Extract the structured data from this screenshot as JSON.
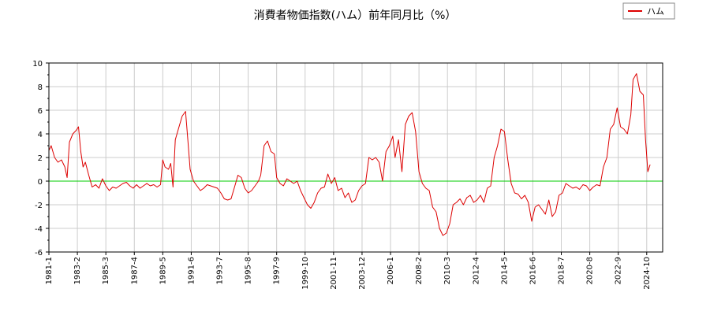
{
  "chart_data": {
    "type": "line",
    "title": "消費者物価指数(ハム）前年同月比（%）",
    "xlabel": "",
    "ylabel": "",
    "ylim": [
      -6,
      10
    ],
    "yticks": [
      -6,
      -4,
      -2,
      0,
      2,
      4,
      6,
      8,
      10
    ],
    "xlim": [
      "1981-01",
      "2025-12"
    ],
    "xticks": [
      "1981-1",
      "1983-2",
      "1985-3",
      "1987-4",
      "1989-5",
      "1991-6",
      "1993-7",
      "1995-8",
      "1997-9",
      "1999-10",
      "2001-11",
      "2003-12",
      "2006-1",
      "2008-2",
      "2010-3",
      "2012-4",
      "2014-5",
      "2016-6",
      "2018-7",
      "2020-8",
      "2022-9",
      "2024-10"
    ],
    "grid": true,
    "legend": {
      "position": "top-right"
    },
    "reference_line": {
      "y": 0,
      "color": "#00cc00"
    },
    "series": [
      {
        "name": "ハム",
        "color": "#dd0000",
        "points": [
          [
            "1981-01",
            2.6
          ],
          [
            "1981-03",
            3.0
          ],
          [
            "1981-06",
            2.0
          ],
          [
            "1981-09",
            1.6
          ],
          [
            "1981-12",
            1.8
          ],
          [
            "1982-03",
            1.2
          ],
          [
            "1982-05",
            0.3
          ],
          [
            "1982-07",
            3.3
          ],
          [
            "1982-10",
            4.0
          ],
          [
            "1983-01",
            4.3
          ],
          [
            "1983-03",
            4.6
          ],
          [
            "1983-05",
            2.5
          ],
          [
            "1983-07",
            1.2
          ],
          [
            "1983-09",
            1.6
          ],
          [
            "1983-12",
            0.5
          ],
          [
            "1984-03",
            -0.5
          ],
          [
            "1984-06",
            -0.3
          ],
          [
            "1984-09",
            -0.6
          ],
          [
            "1984-12",
            0.2
          ],
          [
            "1985-03",
            -0.4
          ],
          [
            "1985-06",
            -0.8
          ],
          [
            "1985-09",
            -0.5
          ],
          [
            "1985-12",
            -0.6
          ],
          [
            "1986-03",
            -0.4
          ],
          [
            "1986-06",
            -0.2
          ],
          [
            "1986-09",
            -0.1
          ],
          [
            "1986-12",
            -0.4
          ],
          [
            "1987-03",
            -0.6
          ],
          [
            "1987-06",
            -0.3
          ],
          [
            "1987-09",
            -0.6
          ],
          [
            "1987-12",
            -0.4
          ],
          [
            "1988-03",
            -0.2
          ],
          [
            "1988-06",
            -0.4
          ],
          [
            "1988-09",
            -0.3
          ],
          [
            "1988-12",
            -0.5
          ],
          [
            "1989-03",
            -0.3
          ],
          [
            "1989-05",
            1.8
          ],
          [
            "1989-07",
            1.2
          ],
          [
            "1989-10",
            1.0
          ],
          [
            "1989-12",
            1.5
          ],
          [
            "1990-02",
            -0.5
          ],
          [
            "1990-04",
            3.5
          ],
          [
            "1990-07",
            4.5
          ],
          [
            "1990-10",
            5.5
          ],
          [
            "1991-01",
            5.9
          ],
          [
            "1991-03",
            3.5
          ],
          [
            "1991-05",
            1.0
          ],
          [
            "1991-08",
            0.0
          ],
          [
            "1991-11",
            -0.4
          ],
          [
            "1992-02",
            -0.8
          ],
          [
            "1992-05",
            -0.6
          ],
          [
            "1992-08",
            -0.3
          ],
          [
            "1992-11",
            -0.4
          ],
          [
            "1993-02",
            -0.5
          ],
          [
            "1993-05",
            -0.6
          ],
          [
            "1993-08",
            -1.0
          ],
          [
            "1993-11",
            -1.5
          ],
          [
            "1994-02",
            -1.6
          ],
          [
            "1994-05",
            -1.5
          ],
          [
            "1994-08",
            -0.5
          ],
          [
            "1994-11",
            0.5
          ],
          [
            "1995-02",
            0.3
          ],
          [
            "1995-05",
            -0.6
          ],
          [
            "1995-08",
            -1.0
          ],
          [
            "1995-11",
            -0.8
          ],
          [
            "1996-02",
            -0.4
          ],
          [
            "1996-05",
            0.0
          ],
          [
            "1996-07",
            0.5
          ],
          [
            "1996-10",
            3.0
          ],
          [
            "1997-01",
            3.4
          ],
          [
            "1997-04",
            2.5
          ],
          [
            "1997-07",
            2.3
          ],
          [
            "1997-09",
            0.3
          ],
          [
            "1997-12",
            -0.2
          ],
          [
            "1998-03",
            -0.4
          ],
          [
            "1998-06",
            0.2
          ],
          [
            "1998-09",
            0.0
          ],
          [
            "1998-12",
            -0.2
          ],
          [
            "1999-03",
            0.0
          ],
          [
            "1999-06",
            -0.8
          ],
          [
            "1999-09",
            -1.4
          ],
          [
            "1999-12",
            -2.0
          ],
          [
            "2000-03",
            -2.3
          ],
          [
            "2000-06",
            -1.8
          ],
          [
            "2000-09",
            -1.0
          ],
          [
            "2000-12",
            -0.6
          ],
          [
            "2001-03",
            -0.5
          ],
          [
            "2001-06",
            0.6
          ],
          [
            "2001-09",
            -0.2
          ],
          [
            "2001-12",
            0.3
          ],
          [
            "2002-03",
            -0.8
          ],
          [
            "2002-06",
            -0.6
          ],
          [
            "2002-09",
            -1.4
          ],
          [
            "2002-12",
            -1.0
          ],
          [
            "2003-03",
            -1.8
          ],
          [
            "2003-06",
            -1.6
          ],
          [
            "2003-09",
            -0.8
          ],
          [
            "2003-12",
            -0.4
          ],
          [
            "2004-03",
            -0.2
          ],
          [
            "2004-06",
            2.0
          ],
          [
            "2004-09",
            1.8
          ],
          [
            "2004-12",
            2.0
          ],
          [
            "2005-03",
            1.6
          ],
          [
            "2005-06",
            0.0
          ],
          [
            "2005-09",
            2.5
          ],
          [
            "2005-12",
            3.0
          ],
          [
            "2006-03",
            3.8
          ],
          [
            "2006-05",
            2.0
          ],
          [
            "2006-08",
            3.5
          ],
          [
            "2006-11",
            0.8
          ],
          [
            "2007-02",
            4.8
          ],
          [
            "2007-05",
            5.5
          ],
          [
            "2007-08",
            5.8
          ],
          [
            "2007-11",
            4.2
          ],
          [
            "2008-02",
            0.8
          ],
          [
            "2008-05",
            -0.2
          ],
          [
            "2008-08",
            -0.6
          ],
          [
            "2008-11",
            -0.8
          ],
          [
            "2009-02",
            -2.2
          ],
          [
            "2009-05",
            -2.6
          ],
          [
            "2009-08",
            -4.0
          ],
          [
            "2009-11",
            -4.6
          ],
          [
            "2010-02",
            -4.4
          ],
          [
            "2010-05",
            -3.6
          ],
          [
            "2010-08",
            -2.0
          ],
          [
            "2010-11",
            -1.8
          ],
          [
            "2011-02",
            -1.5
          ],
          [
            "2011-05",
            -2.0
          ],
          [
            "2011-08",
            -1.4
          ],
          [
            "2011-11",
            -1.2
          ],
          [
            "2012-02",
            -1.8
          ],
          [
            "2012-05",
            -1.6
          ],
          [
            "2012-08",
            -1.2
          ],
          [
            "2012-11",
            -1.8
          ],
          [
            "2013-02",
            -0.6
          ],
          [
            "2013-05",
            -0.4
          ],
          [
            "2013-08",
            2.0
          ],
          [
            "2013-11",
            3.0
          ],
          [
            "2014-02",
            4.4
          ],
          [
            "2014-05",
            4.2
          ],
          [
            "2014-08",
            1.8
          ],
          [
            "2014-11",
            -0.2
          ],
          [
            "2015-02",
            -1.0
          ],
          [
            "2015-05",
            -1.1
          ],
          [
            "2015-08",
            -1.5
          ],
          [
            "2015-11",
            -1.2
          ],
          [
            "2016-02",
            -1.8
          ],
          [
            "2016-05",
            -3.4
          ],
          [
            "2016-08",
            -2.2
          ],
          [
            "2016-11",
            -2.0
          ],
          [
            "2017-02",
            -2.4
          ],
          [
            "2017-05",
            -2.8
          ],
          [
            "2017-08",
            -1.6
          ],
          [
            "2017-11",
            -3.0
          ],
          [
            "2018-02",
            -2.6
          ],
          [
            "2018-05",
            -1.2
          ],
          [
            "2018-08",
            -1.0
          ],
          [
            "2018-11",
            -0.2
          ],
          [
            "2019-02",
            -0.4
          ],
          [
            "2019-05",
            -0.6
          ],
          [
            "2019-08",
            -0.5
          ],
          [
            "2019-11",
            -0.7
          ],
          [
            "2020-02",
            -0.3
          ],
          [
            "2020-05",
            -0.4
          ],
          [
            "2020-08",
            -0.8
          ],
          [
            "2020-11",
            -0.5
          ],
          [
            "2021-02",
            -0.3
          ],
          [
            "2021-05",
            -0.4
          ],
          [
            "2021-08",
            1.2
          ],
          [
            "2021-11",
            2.0
          ],
          [
            "2022-02",
            4.4
          ],
          [
            "2022-05",
            4.8
          ],
          [
            "2022-08",
            6.2
          ],
          [
            "2022-11",
            4.6
          ],
          [
            "2023-02",
            4.4
          ],
          [
            "2023-05",
            4.0
          ],
          [
            "2023-08",
            5.6
          ],
          [
            "2023-10",
            8.6
          ],
          [
            "2024-01",
            9.1
          ],
          [
            "2024-04",
            7.6
          ],
          [
            "2024-07",
            7.3
          ],
          [
            "2024-09",
            3.5
          ],
          [
            "2024-11",
            0.8
          ],
          [
            "2025-01",
            1.4
          ]
        ]
      }
    ]
  }
}
